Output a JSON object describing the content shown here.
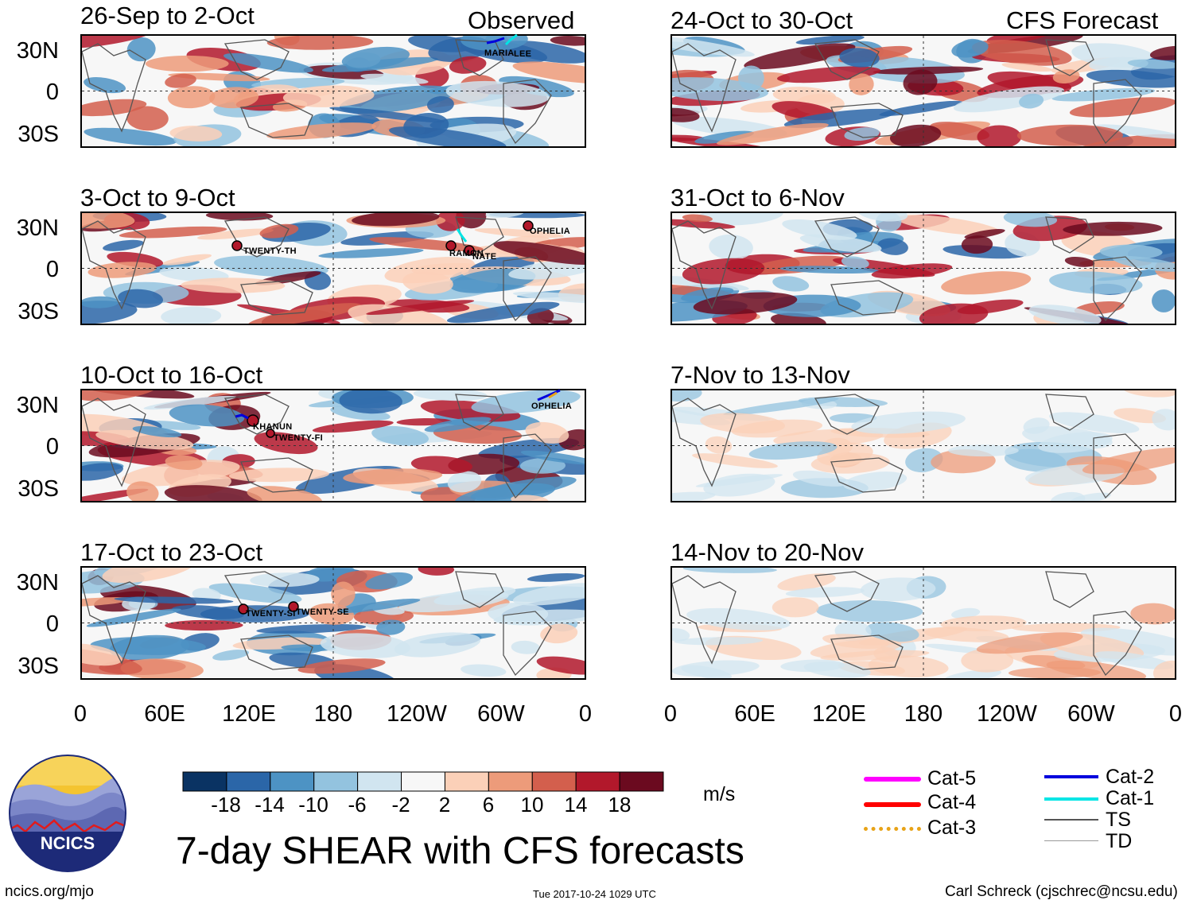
{
  "panels": [
    {
      "id": "obs1",
      "title": "26-Sep to 2-Oct",
      "source_label": "Observed",
      "storms": [
        {
          "name": "MARIA"
        },
        {
          "name": "LEE"
        }
      ]
    },
    {
      "id": "cfs1",
      "title": "24-Oct to 30-Oct",
      "source_label": "CFS Forecast",
      "storms": []
    },
    {
      "id": "obs2",
      "title": "3-Oct to 9-Oct",
      "storms": [
        {
          "name": "TWENTY-TH"
        },
        {
          "name": "RAMON"
        },
        {
          "name": "NATE"
        },
        {
          "name": "OPHELIA"
        }
      ]
    },
    {
      "id": "cfs2",
      "title": "31-Oct to 6-Nov",
      "storms": []
    },
    {
      "id": "obs3",
      "title": "10-Oct to 16-Oct",
      "storms": [
        {
          "name": "KHANUN"
        },
        {
          "name": "TWENTY-FI"
        },
        {
          "name": "OPHELIA"
        }
      ]
    },
    {
      "id": "cfs3",
      "title": "7-Nov to 13-Nov",
      "storms": []
    },
    {
      "id": "obs4",
      "title": "17-Oct to 23-Oct",
      "storms": [
        {
          "name": "TWENTY-SI"
        },
        {
          "name": "TWENTY-SE"
        }
      ]
    },
    {
      "id": "cfs4",
      "title": "14-Nov to 20-Nov",
      "storms": []
    }
  ],
  "lat_labels": [
    "30N",
    "0",
    "30S"
  ],
  "lon_labels": [
    "0",
    "60E",
    "120E",
    "180",
    "120W",
    "60W",
    "0"
  ],
  "colorbar": {
    "unit": "m/s",
    "tick_labels": [
      "-18",
      "-14",
      "-10",
      "-6",
      "-2",
      "2",
      "6",
      "10",
      "14",
      "18"
    ],
    "colors": [
      "#0a3363",
      "#2b66a8",
      "#4d93c4",
      "#93c3df",
      "#d1e5f0",
      "#f7f7f7",
      "#fbd0b8",
      "#ed9b7a",
      "#d35f4d",
      "#b2182b",
      "#6b0a1f"
    ]
  },
  "legend": [
    {
      "label": "Cat-5",
      "color": "#ff00ff"
    },
    {
      "label": "Cat-4",
      "color": "#ff0000"
    },
    {
      "label": "Cat-3",
      "color": "#e8a317"
    },
    {
      "label": "Cat-2",
      "color": "#0000dd"
    },
    {
      "label": "Cat-1",
      "color": "#00e5e5"
    },
    {
      "label": "TS",
      "color": "#555555"
    },
    {
      "label": "TD",
      "color": "#999999"
    }
  ],
  "title": "7-day SHEAR with CFS forecasts",
  "logo": {
    "text": "NCICS"
  },
  "footer": {
    "left": "ncics.org/mjo",
    "center": "Tue 2017-10-24 1029 UTC",
    "right": "Carl Schreck (cjschrec@ncsu.edu)"
  }
}
